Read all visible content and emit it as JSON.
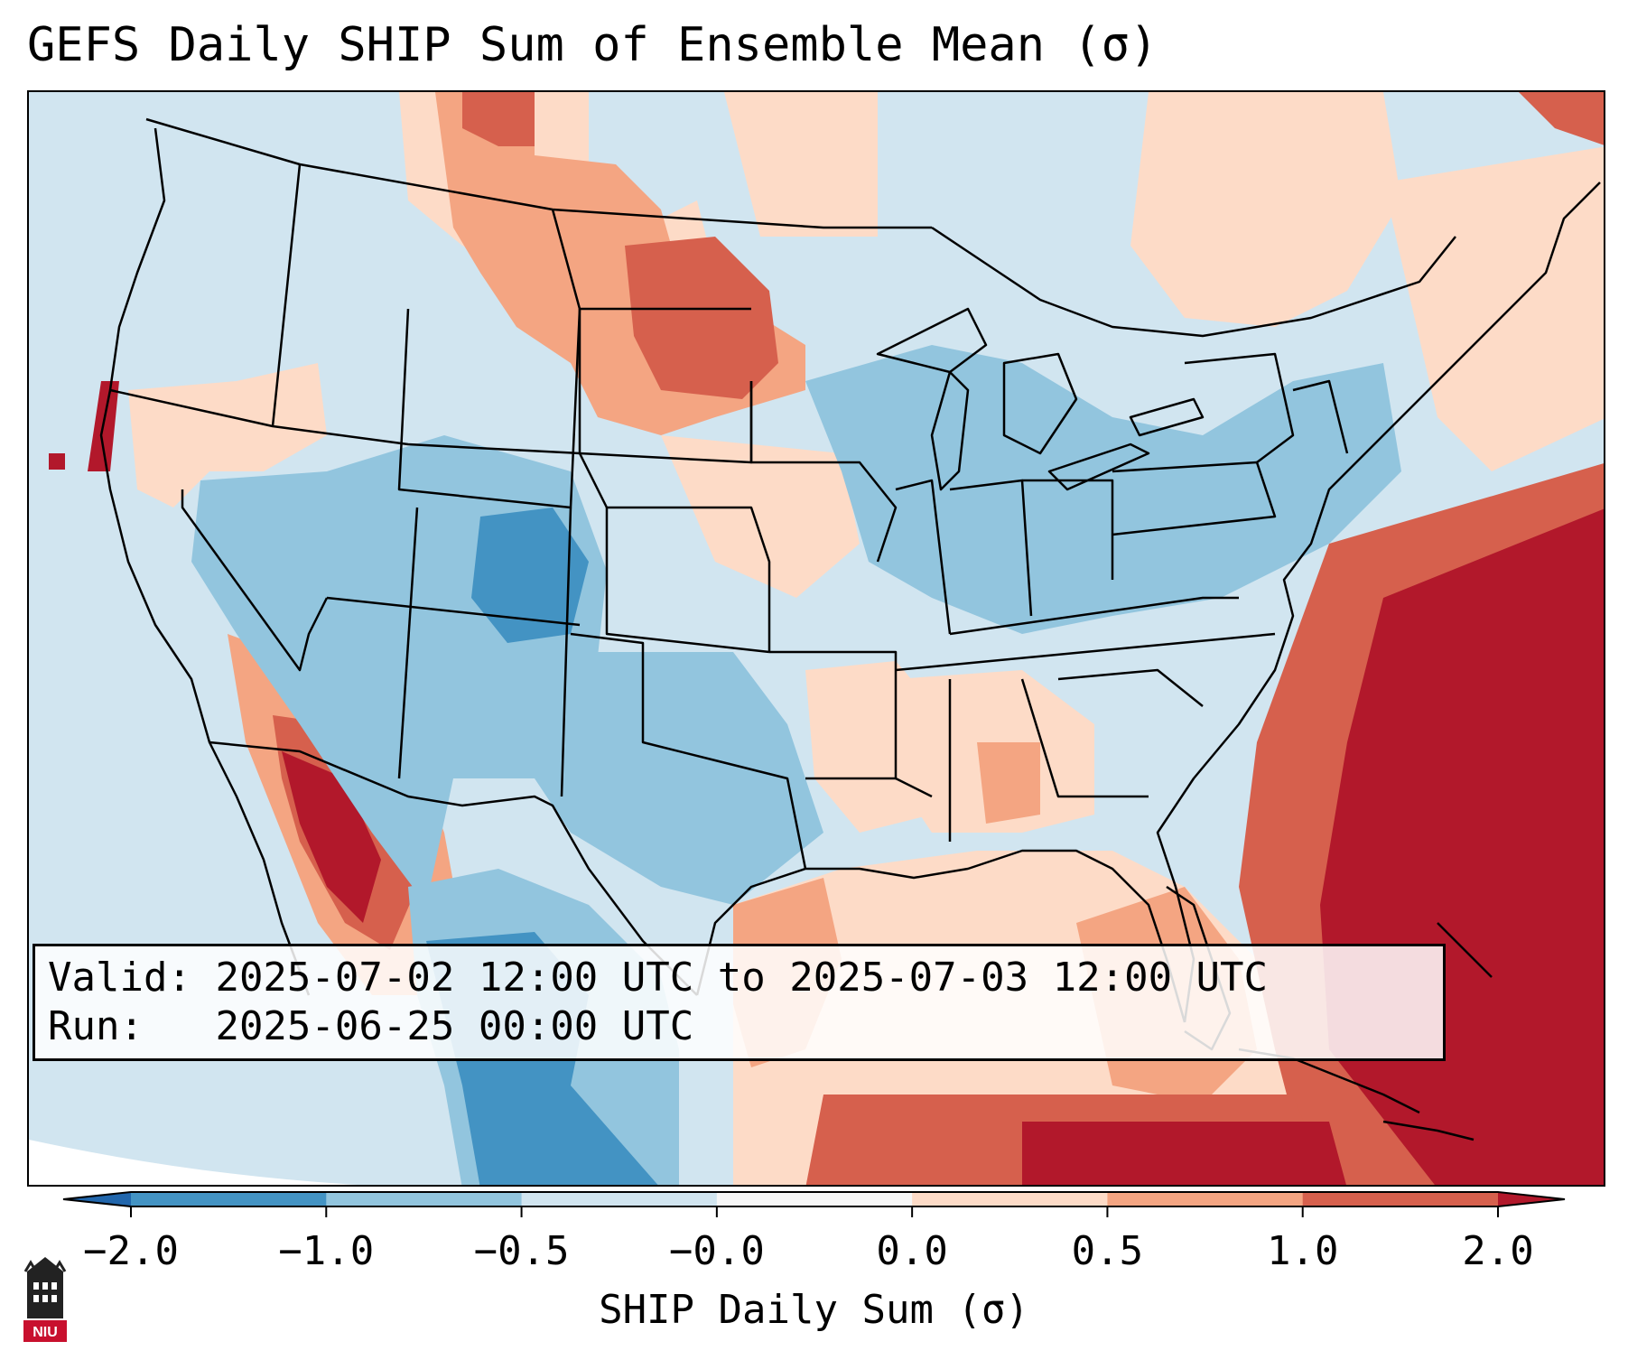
{
  "title": "GEFS Daily SHIP Sum of Ensemble Mean (σ)",
  "info": {
    "valid_label": "Valid:",
    "valid_value": "2025-07-02 12:00 UTC to 2025-07-03 12:00 UTC",
    "run_label": "Run:",
    "run_value": "2025-06-25 00:00 UTC"
  },
  "colorbar": {
    "title": "SHIP Daily Sum (σ)",
    "ticks": [
      "−2.0",
      "−1.0",
      "−0.5",
      "−0.0",
      "0.0",
      "0.5",
      "1.0",
      "2.0"
    ],
    "colors": [
      "#4393c3",
      "#92c5de",
      "#d1e5f0",
      "#f7f7f7",
      "#fddbc7",
      "#f4a582",
      "#d6604d"
    ],
    "under_color": "#2166ac",
    "over_color": "#b2182b"
  },
  "logo": {
    "text": "NIU"
  },
  "palette": {
    "ocean": "#d1e5f0",
    "border": "#000000"
  }
}
